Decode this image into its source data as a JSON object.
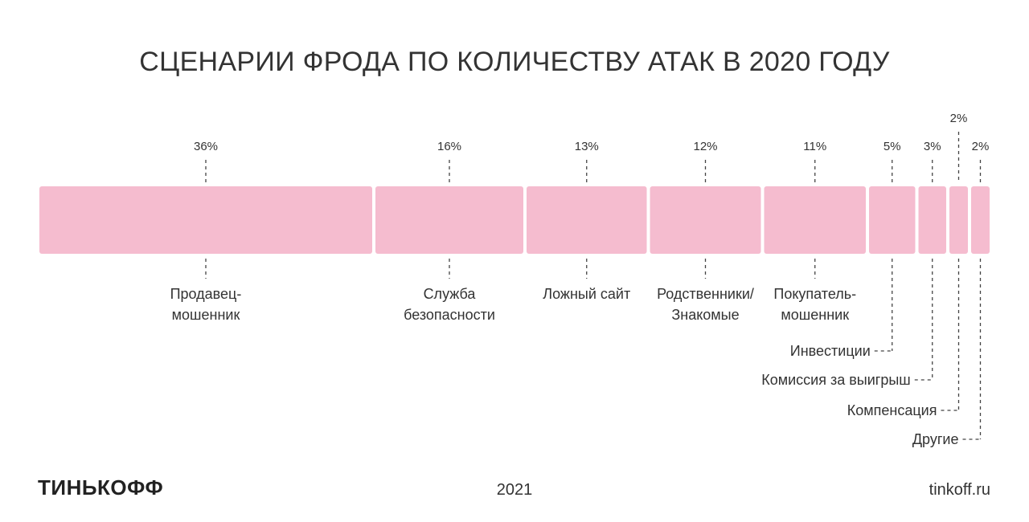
{
  "title": "СЦЕНАРИИ ФРОДА ПО КОЛИЧЕСТВУ АТАК В 2020 ГОДУ",
  "chart_data": {
    "type": "bar",
    "subtype": "stacked-horizontal-100",
    "title": "СЦЕНАРИИ ФРОДА ПО КОЛИЧЕСТВУ АТАК В 2020 ГОДУ",
    "color": "#f5bccf",
    "categories": [
      "Продавец-мошенник",
      "Служба безопасности",
      "Ложный сайт",
      "Родственники/Знакомые",
      "Покупатель-мошенник",
      "Инвестиции",
      "Комиссия за выигрыш",
      "Компенсация",
      "Другие"
    ],
    "values": [
      36,
      16,
      13,
      12,
      11,
      5,
      3,
      2,
      2
    ],
    "value_labels": [
      "36%",
      "16%",
      "13%",
      "12%",
      "11%",
      "5%",
      "3%",
      "2%",
      "2%"
    ],
    "label_lines": [
      [
        "Продавец-",
        "мошенник"
      ],
      [
        "Служба",
        "безопасности"
      ],
      [
        "Ложный сайт"
      ],
      [
        "Родственники/",
        "Знакомые"
      ],
      [
        "Покупатель-",
        "мошенник"
      ],
      [
        "Инвестиции"
      ],
      [
        "Комиссия за выигрыш"
      ],
      [
        "Компенсация"
      ],
      [
        "Другие"
      ]
    ],
    "unit": "%"
  },
  "footer": {
    "logo": "ТИНЬКОФФ",
    "year": "2021",
    "site": "tinkoff.ru"
  }
}
